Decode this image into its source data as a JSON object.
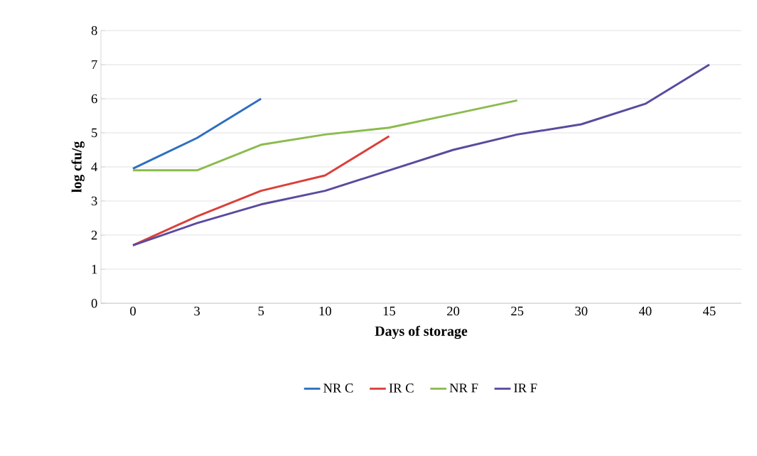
{
  "chart_data": {
    "type": "line",
    "xlabel": "Days of storage",
    "ylabel": "log cfu/g",
    "categories": [
      "0",
      "3",
      "5",
      "10",
      "15",
      "20",
      "25",
      "30",
      "40",
      "45"
    ],
    "series": [
      {
        "name": "NR C",
        "color": "#2e6fc0",
        "values": [
          3.95,
          4.85,
          6.0,
          null,
          null,
          null,
          null,
          null,
          null,
          null
        ]
      },
      {
        "name": "IR C",
        "color": "#d9403a",
        "values": [
          1.7,
          2.55,
          3.3,
          3.75,
          4.9,
          null,
          null,
          null,
          null,
          null
        ]
      },
      {
        "name": "NR F",
        "color": "#8cbb4f",
        "values": [
          3.9,
          3.9,
          4.65,
          4.95,
          5.15,
          5.55,
          5.95,
          null,
          null,
          null
        ]
      },
      {
        "name": "IR F",
        "color": "#5b4a9f",
        "values": [
          1.7,
          2.35,
          2.9,
          3.3,
          3.9,
          4.5,
          4.95,
          5.25,
          5.85,
          7.0
        ]
      }
    ],
    "ylim": [
      0,
      8
    ],
    "yticks": [
      0,
      1,
      2,
      3,
      4,
      5,
      6,
      7,
      8
    ],
    "grid": "y",
    "legend": "bottom",
    "marker": "none",
    "line_style": "solid"
  }
}
